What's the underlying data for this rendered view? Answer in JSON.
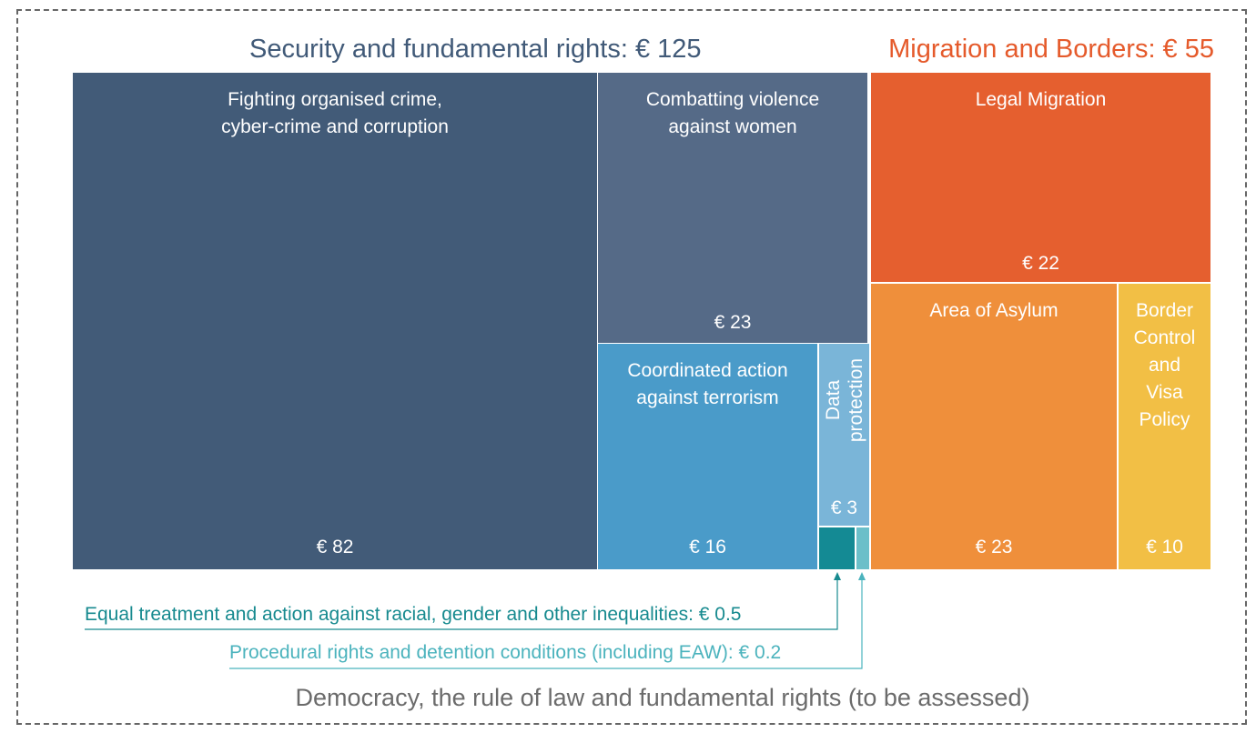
{
  "chart_data": {
    "type": "treemap",
    "groups": [
      {
        "name": "Security and fundamental rights: € 125",
        "color": "#415a78",
        "labels": [
          "Fighting organised crime,\ncyber-crime and corruption",
          "Combatting violence\nagainst women",
          "Coordinated action\nagainst terrorism",
          "Data\nprotection",
          "Equal treatment and action against racial, gender and other inequalities: € 0.5",
          "Procedural rights and detention conditions (including EAW): € 0.2"
        ],
        "values": [
          82,
          23,
          16,
          3,
          0.5,
          0.2
        ],
        "value_labels": [
          "€ 82",
          "€ 23",
          "€ 16",
          "€ 3",
          null,
          null
        ],
        "colors": [
          "#425b78",
          "#556a87",
          "#4a9bc9",
          "#7ab5d8",
          "#148a94",
          "#6bbfc9"
        ]
      },
      {
        "name": "Migration and Borders: € 55",
        "color": "#e55a2b",
        "labels": [
          "Legal Migration",
          "Area of Asylum",
          "Border\nControl\nand\nVisa\nPolicy"
        ],
        "values": [
          22,
          23,
          10
        ],
        "value_labels": [
          "€ 22",
          "€ 23",
          "€ 10"
        ],
        "colors": [
          "#e55f2f",
          "#ef8f3b",
          "#f2bf45"
        ]
      }
    ],
    "caption": "Democracy, the rule of law and fundamental rights (to be assessed)"
  }
}
